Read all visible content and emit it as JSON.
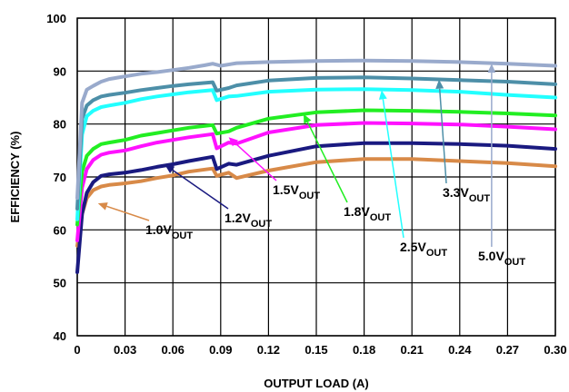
{
  "chart_data": {
    "type": "line",
    "xlabel": "OUTPUT LOAD (A)",
    "ylabel": "EFFICIENCY (%)",
    "xlim": [
      0,
      0.3
    ],
    "ylim": [
      40,
      100
    ],
    "xticks": [
      "0",
      "0.03",
      "0.06",
      "0.09",
      "0.12",
      "0.15",
      "0.18",
      "0.21",
      "0.24",
      "0.27",
      "0.30"
    ],
    "yticks": [
      "40",
      "50",
      "60",
      "70",
      "80",
      "90",
      "100"
    ],
    "grid": "major both axes",
    "series": [
      {
        "name": "1.0V",
        "subscript": "OUT",
        "color": "#d88a48",
        "x": [
          0,
          0.003,
          0.006,
          0.01,
          0.015,
          0.02,
          0.03,
          0.04,
          0.05,
          0.06,
          0.07,
          0.085,
          0.0875,
          0.095,
          0.1,
          0.12,
          0.15,
          0.18,
          0.21,
          0.24,
          0.27,
          0.3
        ],
        "y": [
          57,
          63,
          66,
          67.5,
          68.2,
          68.5,
          68.8,
          69.2,
          69.8,
          70.3,
          71,
          71.6,
          70.2,
          70.8,
          69.8,
          71.2,
          72.8,
          73.4,
          73.4,
          73,
          72.6,
          72
        ]
      },
      {
        "name": "1.2V",
        "subscript": "OUT",
        "color": "#1a1a80",
        "x": [
          0,
          0.003,
          0.006,
          0.01,
          0.015,
          0.02,
          0.03,
          0.04,
          0.05,
          0.06,
          0.07,
          0.085,
          0.0875,
          0.095,
          0.1,
          0.12,
          0.15,
          0.18,
          0.21,
          0.24,
          0.27,
          0.3
        ],
        "y": [
          52,
          63,
          67,
          69,
          70.2,
          70.5,
          70.8,
          71.3,
          71.9,
          72.4,
          73,
          73.8,
          71.5,
          72.5,
          72.3,
          74,
          75.8,
          76.4,
          76.4,
          76.2,
          75.9,
          75.3
        ]
      },
      {
        "name": "1.5V",
        "subscript": "OUT",
        "color": "#ff11ff",
        "x": [
          0,
          0.003,
          0.006,
          0.01,
          0.015,
          0.02,
          0.03,
          0.04,
          0.05,
          0.06,
          0.07,
          0.085,
          0.0875,
          0.095,
          0.1,
          0.12,
          0.15,
          0.18,
          0.21,
          0.24,
          0.27,
          0.3
        ],
        "y": [
          58,
          68,
          71.5,
          73.2,
          74.2,
          74.6,
          75,
          75.8,
          76.5,
          77,
          77.5,
          78.1,
          75.4,
          76.5,
          76.3,
          78.4,
          79.8,
          80.2,
          80.1,
          79.9,
          79.5,
          79
        ]
      },
      {
        "name": "1.8V",
        "subscript": "OUT",
        "color": "#22ee22",
        "x": [
          0,
          0.003,
          0.006,
          0.01,
          0.015,
          0.02,
          0.03,
          0.04,
          0.05,
          0.06,
          0.07,
          0.085,
          0.0875,
          0.095,
          0.1,
          0.12,
          0.15,
          0.18,
          0.21,
          0.24,
          0.27,
          0.3
        ],
        "y": [
          61,
          71,
          74,
          75.3,
          76.2,
          76.5,
          77,
          77.8,
          78.3,
          78.8,
          79.3,
          79.8,
          78.2,
          78.6,
          79.3,
          81,
          82.2,
          82.6,
          82.5,
          82.3,
          82,
          81.6
        ]
      },
      {
        "name": "2.5V",
        "subscript": "OUT",
        "color": "#22ffff",
        "x": [
          0,
          0.003,
          0.006,
          0.01,
          0.015,
          0.02,
          0.03,
          0.04,
          0.05,
          0.06,
          0.07,
          0.085,
          0.0875,
          0.095,
          0.1,
          0.12,
          0.15,
          0.18,
          0.21,
          0.24,
          0.27,
          0.3
        ],
        "y": [
          62,
          78,
          81.5,
          82.5,
          83.2,
          83.5,
          84,
          84.7,
          85.2,
          85.6,
          86,
          86.4,
          84.5,
          85.2,
          85.3,
          86.1,
          86.5,
          86.6,
          86.4,
          86.1,
          85.5,
          85
        ]
      },
      {
        "name": "3.3V",
        "subscript": "OUT",
        "color": "#4d8fa8",
        "x": [
          0,
          0.003,
          0.006,
          0.01,
          0.015,
          0.02,
          0.03,
          0.04,
          0.05,
          0.06,
          0.07,
          0.085,
          0.0875,
          0.095,
          0.1,
          0.12,
          0.15,
          0.18,
          0.21,
          0.24,
          0.27,
          0.3
        ],
        "y": [
          64,
          81,
          83.5,
          84.5,
          85.2,
          85.5,
          85.9,
          86.4,
          86.8,
          87.2,
          87.5,
          87.9,
          86.3,
          86.8,
          87.3,
          88.2,
          88.7,
          88.8,
          88.6,
          88.3,
          88,
          87.5
        ]
      },
      {
        "name": "5.0V",
        "subscript": "OUT",
        "color": "#99aacc",
        "x": [
          0,
          0.003,
          0.006,
          0.01,
          0.015,
          0.02,
          0.03,
          0.04,
          0.05,
          0.06,
          0.07,
          0.08,
          0.085,
          0.09,
          0.1,
          0.12,
          0.15,
          0.18,
          0.21,
          0.24,
          0.27,
          0.3
        ],
        "y": [
          66,
          84,
          86.5,
          87.2,
          88,
          88.5,
          89,
          89.5,
          89.8,
          90.2,
          90.6,
          91.1,
          91.4,
          91,
          91.5,
          91.7,
          91.9,
          92,
          91.9,
          91.7,
          91.4,
          91
        ]
      }
    ]
  }
}
